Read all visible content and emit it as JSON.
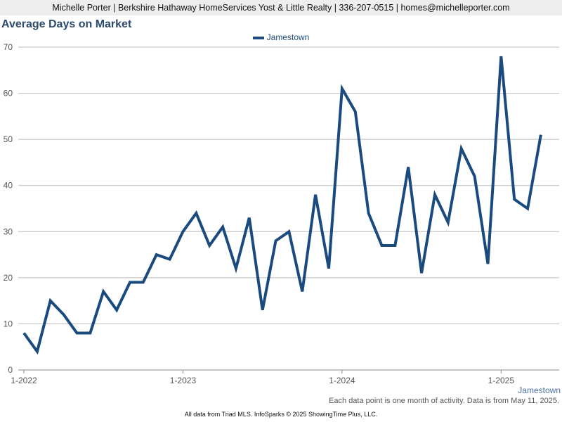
{
  "header": {
    "text": "Michelle Porter | Berkshire Hathaway HomeServices Yost & Little Realty | 336-207-0515 | homes@michelleporter.com"
  },
  "footer": {
    "note": "Each data point is one month of activity. Data is from May 11, 2025.",
    "credit": "All data from Triad MLS. InfoSparks © 2025 ShowingTime Plus, LLC.",
    "corner_label": "Jamestown"
  },
  "chart_data": {
    "type": "line",
    "title": "Average Days on Market",
    "x_tick_labels": [
      "1-2022",
      "1-2023",
      "1-2024",
      "1-2025"
    ],
    "y_ticks": [
      0,
      10,
      20,
      30,
      40,
      50,
      60,
      70
    ],
    "ylim": [
      0,
      70
    ],
    "grid": true,
    "legend_position": "top-center",
    "start_month": "2022-01",
    "series": [
      {
        "name": "Jamestown",
        "color": "#1b4a7e",
        "values": [
          8,
          4,
          15,
          12,
          8,
          8,
          17,
          13,
          19,
          19,
          25,
          24,
          30,
          34,
          27,
          31,
          22,
          33,
          13,
          28,
          30,
          17,
          38,
          22,
          61,
          56,
          34,
          27,
          27,
          44,
          21,
          38,
          32,
          48,
          42,
          23,
          68,
          37,
          35,
          51
        ]
      }
    ]
  }
}
